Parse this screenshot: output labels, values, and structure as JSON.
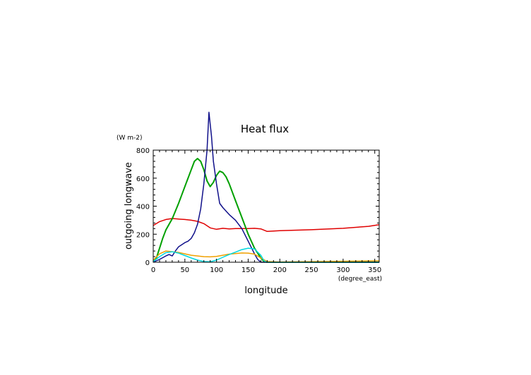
{
  "chart_data": {
    "type": "line",
    "title": "Heat flux",
    "xlabel": "longitude",
    "ylabel": "outgoing longwave",
    "x_unit": "(degree_east)",
    "y_unit": "(W m-2)",
    "xlim": [
      0,
      357
    ],
    "ylim": [
      0,
      800
    ],
    "x_ticks": [
      0,
      50,
      100,
      150,
      200,
      250,
      300,
      350
    ],
    "y_ticks": [
      0,
      200,
      400,
      600,
      800
    ],
    "grid": false,
    "series": [
      {
        "color": "#e00000",
        "x": [
          0,
          10,
          20,
          30,
          40,
          50,
          60,
          70,
          80,
          90,
          100,
          110,
          120,
          130,
          140,
          150,
          160,
          170,
          180,
          200,
          250,
          300,
          340,
          357
        ],
        "y": [
          262,
          290,
          305,
          312,
          308,
          305,
          300,
          292,
          275,
          245,
          235,
          242,
          238,
          240,
          240,
          240,
          242,
          238,
          220,
          225,
          232,
          242,
          256,
          268
        ]
      },
      {
        "color": "#00a000",
        "x": [
          0,
          5,
          10,
          15,
          20,
          25,
          30,
          40,
          50,
          60,
          65,
          70,
          75,
          80,
          85,
          90,
          95,
          100,
          105,
          110,
          115,
          120,
          130,
          140,
          150,
          160,
          170,
          175,
          180,
          200,
          357
        ],
        "y": [
          0,
          30,
          100,
          170,
          230,
          270,
          310,
          420,
          540,
          660,
          720,
          740,
          720,
          660,
          580,
          540,
          570,
          620,
          650,
          640,
          610,
          560,
          440,
          320,
          200,
          100,
          30,
          5,
          0,
          0,
          0
        ]
      },
      {
        "color": "#10108a",
        "x": [
          0,
          10,
          20,
          25,
          30,
          35,
          40,
          45,
          50,
          55,
          60,
          65,
          70,
          75,
          80,
          85,
          88,
          92,
          95,
          100,
          105,
          110,
          120,
          130,
          140,
          150,
          160,
          165,
          170,
          180,
          357
        ],
        "y": [
          0,
          20,
          45,
          55,
          45,
          80,
          110,
          125,
          140,
          150,
          170,
          210,
          270,
          380,
          560,
          800,
          1070,
          900,
          720,
          560,
          420,
          390,
          340,
          300,
          240,
          150,
          60,
          20,
          0,
          0,
          0
        ]
      },
      {
        "color": "#f0a000",
        "x": [
          0,
          10,
          20,
          30,
          40,
          50,
          60,
          70,
          80,
          90,
          100,
          110,
          120,
          130,
          140,
          150,
          160,
          170,
          180,
          200,
          357
        ],
        "y": [
          15,
          60,
          80,
          75,
          70,
          60,
          50,
          45,
          40,
          38,
          42,
          50,
          58,
          62,
          66,
          65,
          58,
          30,
          5,
          2,
          10
        ]
      },
      {
        "color": "#00d8e0",
        "x": [
          0,
          10,
          20,
          30,
          40,
          50,
          60,
          70,
          80,
          90,
          100,
          110,
          120,
          130,
          140,
          150,
          160,
          170,
          175,
          180,
          357
        ],
        "y": [
          5,
          40,
          68,
          75,
          65,
          48,
          30,
          15,
          5,
          3,
          15,
          35,
          55,
          72,
          90,
          100,
          95,
          50,
          10,
          0,
          0
        ]
      }
    ]
  }
}
